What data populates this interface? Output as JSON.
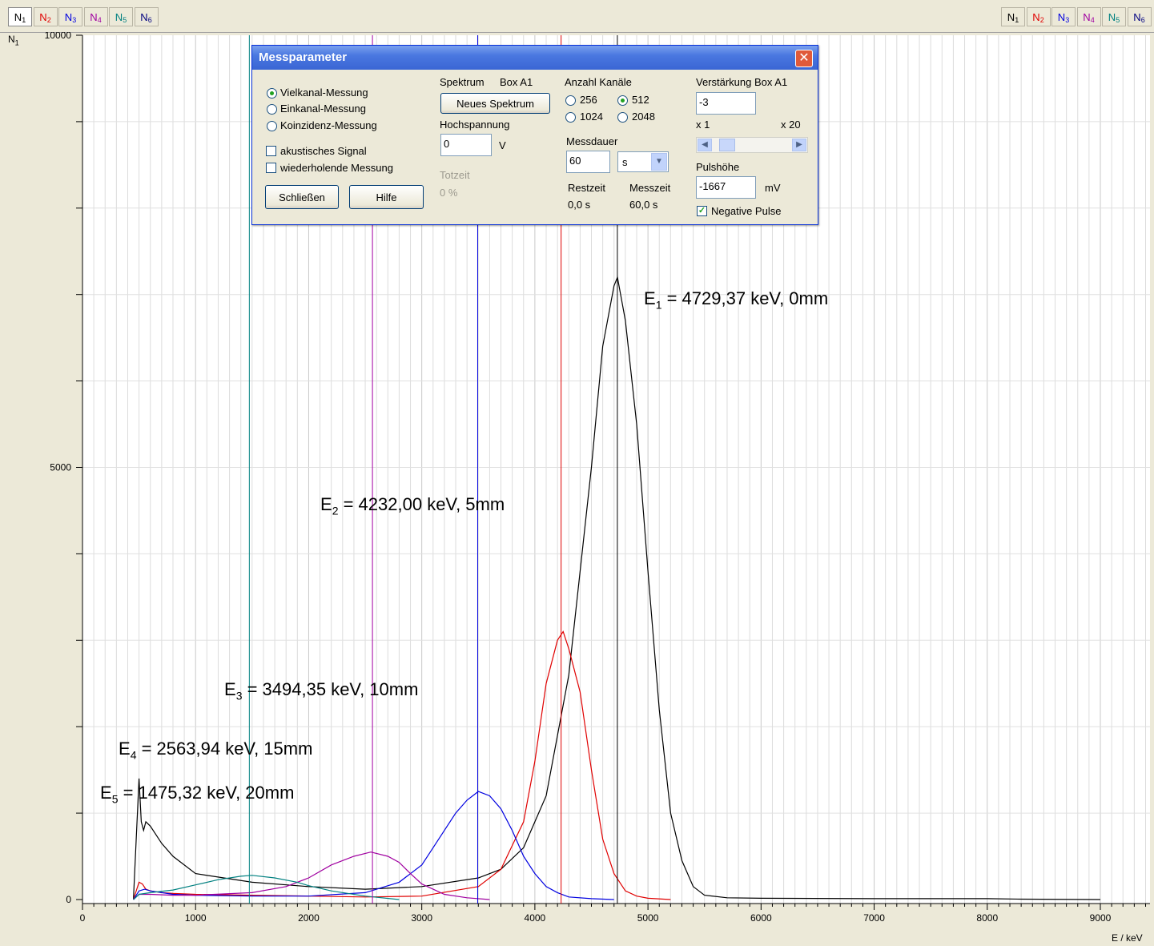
{
  "tabs_left": [
    "N1",
    "N2",
    "N3",
    "N4",
    "N5",
    "N6"
  ],
  "tabs_right": [
    "N1",
    "N2",
    "N3",
    "N4",
    "N5",
    "N6"
  ],
  "tab_colors": [
    "#000000",
    "#e00000",
    "#0000e0",
    "#a000a0",
    "#008080",
    "#000080"
  ],
  "y_axis_label": "N1",
  "x_axis_unit": "E / keV",
  "annotations": [
    {
      "label": "E",
      "sub": "1",
      "text": " =  4729,37 keV,   0mm"
    },
    {
      "label": "E",
      "sub": "2",
      "text": " =  4232,00 keV,   5mm"
    },
    {
      "label": "E",
      "sub": "3",
      "text": " =  3494,35 keV,   10mm"
    },
    {
      "label": "E",
      "sub": "4",
      "text": " =  2563,94 keV,   15mm"
    },
    {
      "label": "E",
      "sub": "5",
      "text": " = 1475,32 keV,   20mm"
    }
  ],
  "chart_data": {
    "type": "line",
    "xlabel": "E / keV",
    "ylabel": "N1",
    "xlim": [
      0,
      9400
    ],
    "ylim": [
      0,
      10000
    ],
    "x_ticks": [
      0,
      1000,
      2000,
      3000,
      4000,
      5000,
      6000,
      7000,
      8000,
      9000
    ],
    "y_tick_labels": [
      0,
      5000,
      10000
    ],
    "marker_lines": [
      {
        "x": 4729.37,
        "color": "#000000"
      },
      {
        "x": 4232.0,
        "color": "#e00000"
      },
      {
        "x": 3494.35,
        "color": "#0000e0"
      },
      {
        "x": 2563.94,
        "color": "#a000a0"
      },
      {
        "x": 1475.32,
        "color": "#008080"
      }
    ],
    "series": [
      {
        "color": "#000000",
        "x": [
          450,
          500,
          520,
          540,
          560,
          600,
          700,
          800,
          1000,
          1500,
          2000,
          2500,
          3000,
          3500,
          3700,
          3900,
          4100,
          4300,
          4500,
          4600,
          4700,
          4730,
          4800,
          4900,
          5000,
          5100,
          5200,
          5300,
          5400,
          5500,
          5700,
          6000,
          7000,
          8000,
          8300,
          9000
        ],
        "y": [
          0,
          1400,
          900,
          800,
          900,
          850,
          650,
          500,
          300,
          200,
          150,
          120,
          150,
          250,
          350,
          600,
          1200,
          2600,
          5000,
          6400,
          7100,
          7200,
          6700,
          5500,
          3800,
          2200,
          1000,
          450,
          150,
          50,
          20,
          15,
          10,
          10,
          5,
          0
        ]
      },
      {
        "color": "#e00000",
        "x": [
          450,
          500,
          530,
          560,
          600,
          700,
          800,
          1000,
          1500,
          2000,
          2500,
          3000,
          3500,
          3700,
          3900,
          4000,
          4100,
          4200,
          4250,
          4300,
          4400,
          4500,
          4600,
          4700,
          4800,
          4900,
          5000,
          5200
        ],
        "y": [
          0,
          200,
          180,
          120,
          100,
          80,
          70,
          60,
          50,
          40,
          30,
          40,
          150,
          350,
          900,
          1600,
          2500,
          3000,
          3100,
          2900,
          2400,
          1500,
          700,
          300,
          100,
          40,
          15,
          0
        ]
      },
      {
        "color": "#0000e0",
        "x": [
          450,
          500,
          550,
          600,
          800,
          1000,
          1500,
          2000,
          2500,
          2800,
          3000,
          3100,
          3200,
          3300,
          3400,
          3500,
          3600,
          3700,
          3800,
          3900,
          4000,
          4100,
          4200,
          4300,
          4500,
          4700
        ],
        "y": [
          0,
          100,
          120,
          100,
          60,
          50,
          40,
          40,
          80,
          200,
          400,
          600,
          800,
          1000,
          1150,
          1250,
          1200,
          1050,
          800,
          500,
          300,
          150,
          80,
          30,
          10,
          0
        ]
      },
      {
        "color": "#a000a0",
        "x": [
          450,
          500,
          600,
          800,
          1000,
          1500,
          1800,
          2000,
          2200,
          2400,
          2550,
          2700,
          2800,
          2900,
          3000,
          3200,
          3400,
          3600
        ],
        "y": [
          0,
          60,
          60,
          50,
          50,
          80,
          150,
          250,
          400,
          500,
          550,
          500,
          430,
          300,
          180,
          60,
          20,
          0
        ]
      },
      {
        "color": "#008080",
        "x": [
          450,
          500,
          600,
          800,
          1000,
          1200,
          1400,
          1500,
          1700,
          1900,
          2000,
          2200,
          2500,
          2800
        ],
        "y": [
          0,
          60,
          80,
          110,
          170,
          230,
          270,
          280,
          250,
          200,
          160,
          100,
          40,
          0
        ]
      }
    ]
  },
  "dialog": {
    "title": "Messparameter",
    "close": "✕",
    "mode_options": [
      "Vielkanal-Messung",
      "Einkanal-Messung",
      "Koinzidenz-Messung"
    ],
    "mode_selected": 0,
    "akustisches": "akustisches Signal",
    "wiederholende": "wiederholende Messung",
    "btn_close": "Schließen",
    "btn_help": "Hilfe",
    "spektrum_label": "Spektrum",
    "box_label": "Box A1",
    "btn_neues": "Neues Spektrum",
    "hochspannung_label": "Hochspannung",
    "hochspannung_value": "0",
    "hochspannung_unit": "V",
    "totzeit_label": "Totzeit",
    "totzeit_value": "0 %",
    "kanaele_label": "Anzahl Kanäle",
    "kanaele_options": [
      "256",
      "512",
      "1024",
      "2048"
    ],
    "kanaele_selected": 1,
    "messdauer_label": "Messdauer",
    "messdauer_value": "60",
    "messdauer_unit": "s",
    "restzeit_label": "Restzeit",
    "restzeit_value": "0,0 s",
    "messzeit_label": "Messzeit",
    "messzeit_value": "60,0 s",
    "verstaerkung_label": "Verstärkung Box A1",
    "verstaerkung_value": "-3",
    "scale_min": "x 1",
    "scale_max": "x 20",
    "pulshoehe_label": "Pulshöhe",
    "pulshoehe_value": "-1667",
    "pulshoehe_unit": "mV",
    "negative_pulse": "Negative Pulse"
  }
}
